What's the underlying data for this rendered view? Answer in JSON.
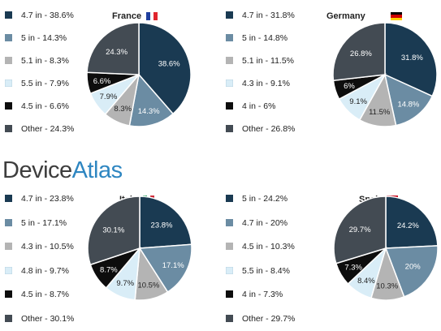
{
  "brand": {
    "part1": "Device",
    "part2": "Atlas"
  },
  "colors": {
    "navy": "#1a3a52",
    "steel": "#6b8ca3",
    "gray": "#b4b4b4",
    "light": "#d9edf7",
    "black": "#0d0d0d",
    "charcoal": "#434b53"
  },
  "chart_data": [
    {
      "type": "pie",
      "title": "France",
      "flag": {
        "colors": [
          "#1f3f9e",
          "#ffffff",
          "#e0252e"
        ],
        "orientation": "vertical"
      },
      "categories": [
        "4.7 in",
        "5 in",
        "5.1 in",
        "5.5 in",
        "4.5 in",
        "Other"
      ],
      "values": [
        38.6,
        14.3,
        8.3,
        7.9,
        6.6,
        24.3
      ],
      "legend": [
        "4.7 in - 38.6%",
        "5 in - 14.3%",
        "5.1 in - 8.3%",
        "5.5 in - 7.9%",
        "4.5 in - 6.6%",
        "Other - 24.3%"
      ],
      "labels": [
        "38.6%",
        "14.3%",
        "8.3%",
        "7.9%",
        "6.6%",
        "24.3%"
      ],
      "colors": [
        "navy",
        "steel",
        "gray",
        "light",
        "black",
        "charcoal"
      ]
    },
    {
      "type": "pie",
      "title": "Germany",
      "flag": {
        "colors": [
          "#000000",
          "#d00000",
          "#ffce00"
        ],
        "orientation": "horizontal"
      },
      "categories": [
        "4.7 in",
        "5 in",
        "5.1 in",
        "4.3 in",
        "4 in",
        "Other"
      ],
      "values": [
        31.8,
        14.8,
        11.5,
        9.1,
        6,
        26.8
      ],
      "legend": [
        "4.7 in - 31.8%",
        "5 in - 14.8%",
        "5.1 in - 11.5%",
        "4.3 in - 9.1%",
        "4 in - 6%",
        "Other - 26.8%"
      ],
      "labels": [
        "31.8%",
        "14.8%",
        "11.5%",
        "9.1%",
        "6%",
        "26.8%"
      ],
      "colors": [
        "navy",
        "steel",
        "gray",
        "light",
        "black",
        "charcoal"
      ]
    },
    {
      "type": "pie",
      "title": "Italy",
      "flag": {
        "colors": [
          "#009246",
          "#ffffff",
          "#ce2b37"
        ],
        "orientation": "vertical"
      },
      "categories": [
        "4.7 in",
        "5 in",
        "4.3 in",
        "4.8 in",
        "4.5 in",
        "Other"
      ],
      "values": [
        23.8,
        17.1,
        10.5,
        9.7,
        8.7,
        30.1
      ],
      "legend": [
        "4.7 in - 23.8%",
        "5 in - 17.1%",
        "4.3 in - 10.5%",
        "4.8 in - 9.7%",
        "4.5 in - 8.7%",
        "Other - 30.1%"
      ],
      "labels": [
        "23.8%",
        "17.1%",
        "10.5%",
        "9.7%",
        "8.7%",
        "30.1%"
      ],
      "colors": [
        "navy",
        "steel",
        "gray",
        "light",
        "black",
        "charcoal"
      ]
    },
    {
      "type": "pie",
      "title": "Spain",
      "flag": {
        "colors": [
          "#c60b1e",
          "#ffc400",
          "#c60b1e"
        ],
        "orientation": "spain"
      },
      "categories": [
        "5 in",
        "4.7 in",
        "4.5 in",
        "5.5 in",
        "4 in",
        "Other"
      ],
      "values": [
        24.2,
        20,
        10.3,
        8.4,
        7.3,
        29.7
      ],
      "legend": [
        "5 in - 24.2%",
        "4.7 in - 20%",
        "4.5 in - 10.3%",
        "5.5 in - 8.4%",
        "4 in - 7.3%",
        "Other - 29.7%"
      ],
      "labels": [
        "24.2%",
        "20%",
        "10.3%",
        "8.4%",
        "7.3%",
        "29.7%"
      ],
      "colors": [
        "navy",
        "steel",
        "gray",
        "light",
        "black",
        "charcoal"
      ]
    }
  ]
}
